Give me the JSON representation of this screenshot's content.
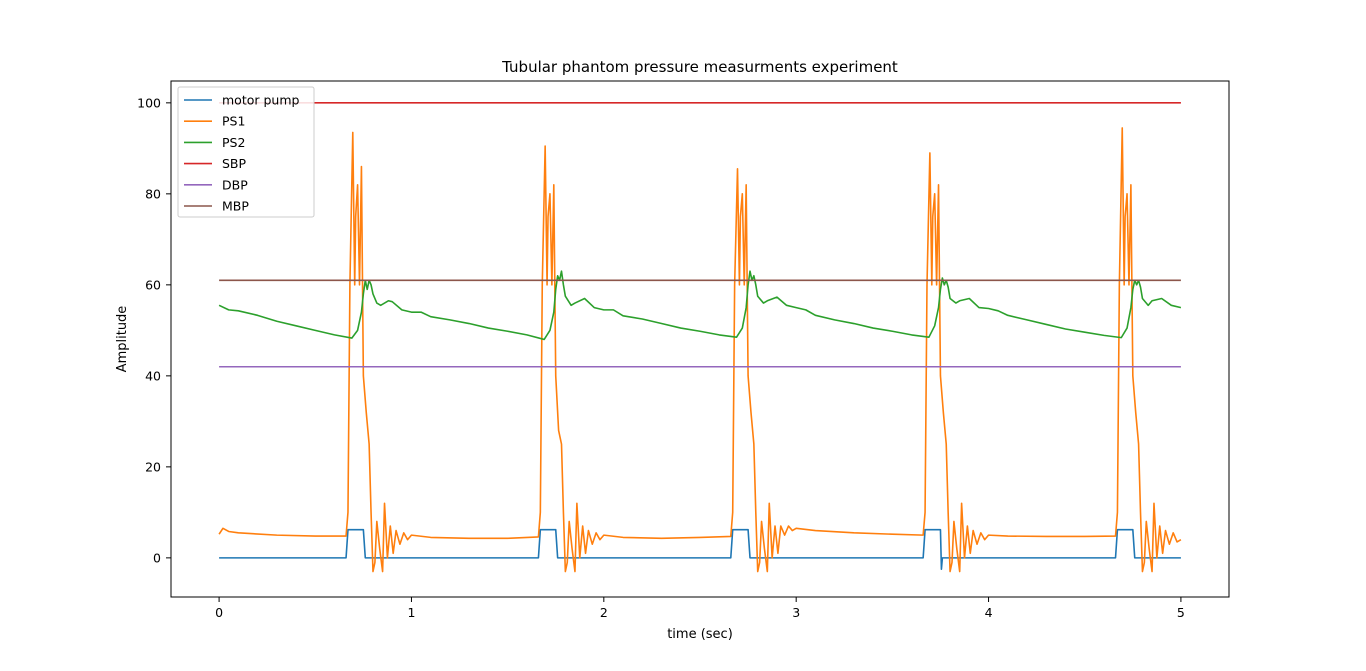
{
  "chart_data": {
    "type": "line",
    "title": "Tubular phantom pressure measurments experiment",
    "xlabel": "time (sec)",
    "ylabel": "Amplitude",
    "xlim": [
      -0.25,
      5.25
    ],
    "ylim": [
      -8.6,
      104.8
    ],
    "xticks": [
      0,
      1,
      2,
      3,
      4,
      5
    ],
    "yticks": [
      0,
      20,
      40,
      60,
      80,
      100
    ],
    "grid": false,
    "legend_position": "top-left",
    "period": 1.0,
    "series": [
      {
        "name": "motor pump",
        "color": "#1f77b4",
        "points": [
          [
            0,
            0
          ],
          [
            0.66,
            0
          ],
          [
            0.67,
            6.2
          ],
          [
            0.75,
            6.2
          ],
          [
            0.76,
            0
          ],
          [
            1.66,
            0
          ],
          [
            1.67,
            6.2
          ],
          [
            1.75,
            6.2
          ],
          [
            1.76,
            0
          ],
          [
            2.66,
            0
          ],
          [
            2.67,
            6.2
          ],
          [
            2.75,
            6.2
          ],
          [
            2.76,
            0
          ],
          [
            3.66,
            0
          ],
          [
            3.67,
            6.2
          ],
          [
            3.75,
            6.2
          ],
          [
            3.755,
            -2.5
          ],
          [
            3.76,
            0
          ],
          [
            4.66,
            0
          ],
          [
            4.67,
            6.2
          ],
          [
            4.75,
            6.2
          ],
          [
            4.76,
            0
          ],
          [
            5.0,
            0
          ]
        ]
      },
      {
        "name": "PS1",
        "color": "#ff7f0e",
        "description_hint": "periodic pressure pulse, baseline ~5, peaks ~90-95 near t=0.69+k",
        "points": [
          [
            0,
            5.2
          ],
          [
            0.02,
            6.5
          ],
          [
            0.05,
            5.8
          ],
          [
            0.1,
            5.5
          ],
          [
            0.3,
            5.0
          ],
          [
            0.5,
            4.8
          ],
          [
            0.66,
            4.8
          ],
          [
            0.67,
            10
          ],
          [
            0.68,
            60
          ],
          [
            0.695,
            93.5
          ],
          [
            0.705,
            60
          ],
          [
            0.71,
            75
          ],
          [
            0.72,
            82
          ],
          [
            0.73,
            60
          ],
          [
            0.74,
            86
          ],
          [
            0.75,
            40
          ],
          [
            0.765,
            32
          ],
          [
            0.78,
            25
          ],
          [
            0.79,
            10
          ],
          [
            0.8,
            -3
          ],
          [
            0.81,
            -1
          ],
          [
            0.82,
            8
          ],
          [
            0.835,
            2
          ],
          [
            0.85,
            -3
          ],
          [
            0.86,
            12
          ],
          [
            0.875,
            0
          ],
          [
            0.89,
            7
          ],
          [
            0.905,
            1
          ],
          [
            0.92,
            6
          ],
          [
            0.94,
            3
          ],
          [
            0.96,
            5.5
          ],
          [
            0.98,
            4
          ],
          [
            1.0,
            5
          ],
          [
            1.1,
            4.5
          ],
          [
            1.3,
            4.3
          ],
          [
            1.5,
            4.3
          ],
          [
            1.66,
            4.6
          ],
          [
            1.67,
            10
          ],
          [
            1.68,
            60
          ],
          [
            1.695,
            90.5
          ],
          [
            1.705,
            60
          ],
          [
            1.71,
            75
          ],
          [
            1.72,
            80
          ],
          [
            1.73,
            60
          ],
          [
            1.74,
            82
          ],
          [
            1.75,
            40
          ],
          [
            1.765,
            28
          ],
          [
            1.78,
            25
          ],
          [
            1.79,
            10
          ],
          [
            1.8,
            -3
          ],
          [
            1.81,
            -1
          ],
          [
            1.82,
            8
          ],
          [
            1.835,
            2
          ],
          [
            1.85,
            -3
          ],
          [
            1.86,
            12
          ],
          [
            1.875,
            0
          ],
          [
            1.89,
            7
          ],
          [
            1.905,
            1
          ],
          [
            1.92,
            6
          ],
          [
            1.94,
            3
          ],
          [
            1.96,
            5.5
          ],
          [
            1.98,
            4
          ],
          [
            2.0,
            5
          ],
          [
            2.1,
            4.5
          ],
          [
            2.3,
            4.3
          ],
          [
            2.5,
            4.5
          ],
          [
            2.66,
            4.7
          ],
          [
            2.67,
            10
          ],
          [
            2.68,
            60
          ],
          [
            2.695,
            85.5
          ],
          [
            2.705,
            60
          ],
          [
            2.71,
            75
          ],
          [
            2.72,
            80
          ],
          [
            2.73,
            60
          ],
          [
            2.74,
            82
          ],
          [
            2.75,
            40
          ],
          [
            2.765,
            32
          ],
          [
            2.78,
            25
          ],
          [
            2.79,
            10
          ],
          [
            2.8,
            -3
          ],
          [
            2.81,
            -1
          ],
          [
            2.82,
            8
          ],
          [
            2.835,
            2
          ],
          [
            2.85,
            -3
          ],
          [
            2.86,
            12
          ],
          [
            2.875,
            0
          ],
          [
            2.89,
            7
          ],
          [
            2.905,
            1
          ],
          [
            2.92,
            7
          ],
          [
            2.94,
            5
          ],
          [
            2.96,
            7
          ],
          [
            2.98,
            6
          ],
          [
            3.0,
            6.5
          ],
          [
            3.1,
            6
          ],
          [
            3.3,
            5.5
          ],
          [
            3.5,
            5.2
          ],
          [
            3.66,
            5
          ],
          [
            3.67,
            10
          ],
          [
            3.68,
            60
          ],
          [
            3.695,
            89
          ],
          [
            3.705,
            60
          ],
          [
            3.71,
            75
          ],
          [
            3.72,
            80
          ],
          [
            3.73,
            60
          ],
          [
            3.74,
            82
          ],
          [
            3.75,
            40
          ],
          [
            3.765,
            32
          ],
          [
            3.78,
            25
          ],
          [
            3.79,
            10
          ],
          [
            3.8,
            -3
          ],
          [
            3.81,
            -1
          ],
          [
            3.82,
            8
          ],
          [
            3.835,
            2
          ],
          [
            3.85,
            -3
          ],
          [
            3.86,
            12
          ],
          [
            3.875,
            0
          ],
          [
            3.89,
            7
          ],
          [
            3.905,
            1
          ],
          [
            3.92,
            6
          ],
          [
            3.94,
            3
          ],
          [
            3.96,
            5.5
          ],
          [
            3.98,
            4
          ],
          [
            4.0,
            5
          ],
          [
            4.1,
            4.8
          ],
          [
            4.3,
            4.7
          ],
          [
            4.5,
            4.7
          ],
          [
            4.66,
            4.8
          ],
          [
            4.67,
            10
          ],
          [
            4.68,
            60
          ],
          [
            4.695,
            94.5
          ],
          [
            4.705,
            60
          ],
          [
            4.71,
            75
          ],
          [
            4.72,
            80
          ],
          [
            4.73,
            60
          ],
          [
            4.74,
            82
          ],
          [
            4.75,
            40
          ],
          [
            4.765,
            32
          ],
          [
            4.78,
            25
          ],
          [
            4.79,
            10
          ],
          [
            4.8,
            -3
          ],
          [
            4.81,
            -1
          ],
          [
            4.82,
            8
          ],
          [
            4.835,
            2
          ],
          [
            4.85,
            -3
          ],
          [
            4.86,
            12
          ],
          [
            4.875,
            0
          ],
          [
            4.89,
            7
          ],
          [
            4.905,
            1
          ],
          [
            4.92,
            6
          ],
          [
            4.94,
            3
          ],
          [
            4.96,
            5.5
          ],
          [
            4.98,
            3.5
          ],
          [
            5.0,
            4
          ]
        ]
      },
      {
        "name": "PS2",
        "color": "#2ca02c",
        "points": [
          [
            0,
            55.5
          ],
          [
            0.05,
            54.5
          ],
          [
            0.1,
            54.3
          ],
          [
            0.2,
            53.3
          ],
          [
            0.3,
            52
          ],
          [
            0.4,
            51
          ],
          [
            0.5,
            50
          ],
          [
            0.6,
            49
          ],
          [
            0.69,
            48.3
          ],
          [
            0.72,
            50
          ],
          [
            0.74,
            54
          ],
          [
            0.75,
            58
          ],
          [
            0.76,
            61
          ],
          [
            0.77,
            59
          ],
          [
            0.78,
            61
          ],
          [
            0.79,
            60
          ],
          [
            0.8,
            58
          ],
          [
            0.82,
            56
          ],
          [
            0.84,
            55.5
          ],
          [
            0.88,
            56.5
          ],
          [
            0.9,
            56.3
          ],
          [
            0.95,
            54.5
          ],
          [
            1.0,
            54
          ],
          [
            1.05,
            54
          ],
          [
            1.1,
            53
          ],
          [
            1.2,
            52.3
          ],
          [
            1.3,
            51.5
          ],
          [
            1.4,
            50.5
          ],
          [
            1.5,
            49.8
          ],
          [
            1.6,
            49
          ],
          [
            1.69,
            48
          ],
          [
            1.72,
            50
          ],
          [
            1.74,
            54
          ],
          [
            1.75,
            59
          ],
          [
            1.76,
            62
          ],
          [
            1.77,
            61
          ],
          [
            1.78,
            63
          ],
          [
            1.79,
            60
          ],
          [
            1.8,
            57.5
          ],
          [
            1.83,
            55.5
          ],
          [
            1.85,
            56
          ],
          [
            1.9,
            57
          ],
          [
            1.95,
            55
          ],
          [
            2.0,
            54.5
          ],
          [
            2.05,
            54.5
          ],
          [
            2.1,
            53.2
          ],
          [
            2.2,
            52.5
          ],
          [
            2.3,
            51.5
          ],
          [
            2.4,
            50.5
          ],
          [
            2.5,
            49.8
          ],
          [
            2.6,
            49
          ],
          [
            2.69,
            48.5
          ],
          [
            2.72,
            50.5
          ],
          [
            2.74,
            55
          ],
          [
            2.75,
            60
          ],
          [
            2.76,
            63
          ],
          [
            2.77,
            61
          ],
          [
            2.78,
            62
          ],
          [
            2.79,
            60
          ],
          [
            2.8,
            57.5
          ],
          [
            2.83,
            56
          ],
          [
            2.85,
            56.5
          ],
          [
            2.9,
            57.3
          ],
          [
            2.95,
            55.5
          ],
          [
            3.0,
            55
          ],
          [
            3.05,
            54.5
          ],
          [
            3.1,
            53.3
          ],
          [
            3.2,
            52.3
          ],
          [
            3.3,
            51.5
          ],
          [
            3.4,
            50.5
          ],
          [
            3.5,
            49.8
          ],
          [
            3.6,
            49
          ],
          [
            3.69,
            48.5
          ],
          [
            3.72,
            51
          ],
          [
            3.74,
            55
          ],
          [
            3.75,
            59
          ],
          [
            3.76,
            61.5
          ],
          [
            3.77,
            60
          ],
          [
            3.78,
            61
          ],
          [
            3.79,
            59.5
          ],
          [
            3.8,
            57
          ],
          [
            3.83,
            56
          ],
          [
            3.85,
            56.5
          ],
          [
            3.9,
            57
          ],
          [
            3.95,
            55
          ],
          [
            4.0,
            54.8
          ],
          [
            4.05,
            54.3
          ],
          [
            4.1,
            53.3
          ],
          [
            4.2,
            52.3
          ],
          [
            4.3,
            51.3
          ],
          [
            4.4,
            50.3
          ],
          [
            4.5,
            49.6
          ],
          [
            4.6,
            48.9
          ],
          [
            4.69,
            48.4
          ],
          [
            4.72,
            50.5
          ],
          [
            4.74,
            55
          ],
          [
            4.75,
            59
          ],
          [
            4.76,
            61
          ],
          [
            4.77,
            60
          ],
          [
            4.78,
            61
          ],
          [
            4.79,
            59.5
          ],
          [
            4.8,
            57
          ],
          [
            4.83,
            55.5
          ],
          [
            4.85,
            56.5
          ],
          [
            4.9,
            57
          ],
          [
            4.95,
            55.5
          ],
          [
            5.0,
            55
          ]
        ]
      },
      {
        "name": "SBP",
        "color": "#d62728",
        "points": [
          [
            0,
            100
          ],
          [
            5,
            100
          ]
        ]
      },
      {
        "name": "DBP",
        "color": "#9467bd",
        "points": [
          [
            0,
            42
          ],
          [
            5,
            42
          ]
        ]
      },
      {
        "name": "MBP",
        "color": "#8c564b",
        "points": [
          [
            0,
            61
          ],
          [
            5,
            61
          ]
        ]
      }
    ]
  }
}
